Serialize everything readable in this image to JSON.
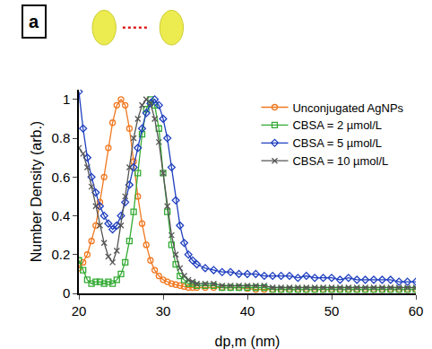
{
  "chart_data": {
    "type": "line",
    "annotations": [
      "a"
    ],
    "x_label": "dp,m (nm)",
    "y_label": "Number Density (arb.)",
    "x": [
      20,
      20.5,
      21,
      21.5,
      22,
      22.5,
      23,
      23.5,
      24,
      24.5,
      25,
      25.5,
      26,
      26.5,
      27,
      27.5,
      28,
      28.5,
      29,
      29.5,
      30,
      30.5,
      31,
      31.5,
      32,
      32.5,
      33,
      33.5,
      34,
      35,
      36,
      37,
      38,
      39,
      40,
      41,
      42,
      43,
      44,
      45,
      46,
      47,
      48,
      49,
      50,
      51,
      52,
      53,
      54,
      55,
      56,
      57,
      58,
      59,
      60
    ],
    "xlim": [
      20,
      60
    ],
    "xticks": [
      20,
      30,
      40,
      50,
      60
    ],
    "ylim": [
      0,
      1.05
    ],
    "yticks": [
      0,
      0.2,
      0.4,
      0.6,
      0.8,
      1
    ],
    "grid": false,
    "legend": "upper right",
    "series": [
      {
        "name": "Unconjugated AgNPs",
        "color": "#f07820",
        "marker": "circle-open",
        "line_style": "solid",
        "values": [
          0.13,
          0.16,
          0.2,
          0.27,
          0.35,
          0.47,
          0.6,
          0.75,
          0.88,
          0.97,
          1.0,
          0.97,
          0.85,
          0.68,
          0.5,
          0.36,
          0.25,
          0.17,
          0.12,
          0.09,
          0.07,
          0.06,
          0.05,
          0.045,
          0.04,
          0.035,
          0.03,
          0.03,
          0.03,
          0.03,
          0.03,
          0.03,
          0.03,
          0.03,
          0.025,
          0.02,
          0.02,
          0.02,
          0.02,
          0.02,
          0.02,
          0.02,
          0.02,
          0.02,
          0.02,
          0.02,
          0.02,
          0.02,
          0.02,
          0.02,
          0.02,
          0.02,
          0.02,
          0.02,
          0.02
        ]
      },
      {
        "name": "CBSA = 2 µmol/L",
        "color": "#33aa33",
        "marker": "square-open",
        "line_style": "solid",
        "values": [
          0.17,
          0.12,
          0.07,
          0.05,
          0.06,
          0.06,
          0.05,
          0.06,
          0.05,
          0.07,
          0.1,
          0.16,
          0.27,
          0.42,
          0.62,
          0.82,
          0.95,
          1.0,
          0.97,
          0.85,
          0.62,
          0.42,
          0.25,
          0.15,
          0.09,
          0.07,
          0.05,
          0.05,
          0.04,
          0.04,
          0.04,
          0.03,
          0.03,
          0.03,
          0.03,
          0.03,
          0.03,
          0.02,
          0.02,
          0.02,
          0.02,
          0.02,
          0.02,
          0.02,
          0.02,
          0.02,
          0.02,
          0.02,
          0.02,
          0.02,
          0.02,
          0.02,
          0.02,
          0.02,
          0.02
        ]
      },
      {
        "name": "CBSA = 5 µmol/L",
        "color": "#1f3fbf",
        "marker": "diamond-open",
        "line_style": "solid",
        "values": [
          1.04,
          0.85,
          0.7,
          0.6,
          0.52,
          0.45,
          0.4,
          0.36,
          0.33,
          0.35,
          0.4,
          0.47,
          0.56,
          0.65,
          0.75,
          0.85,
          0.93,
          0.98,
          1.0,
          0.97,
          0.9,
          0.8,
          0.65,
          0.48,
          0.35,
          0.26,
          0.2,
          0.17,
          0.15,
          0.13,
          0.12,
          0.11,
          0.11,
          0.1,
          0.1,
          0.1,
          0.09,
          0.09,
          0.09,
          0.09,
          0.08,
          0.09,
          0.08,
          0.08,
          0.08,
          0.07,
          0.08,
          0.07,
          0.07,
          0.07,
          0.07,
          0.07,
          0.06,
          0.06,
          0.06
        ]
      },
      {
        "name": "CBSA = 10 µmol/L",
        "color": "#555555",
        "marker": "x-thin-open",
        "line_style": "solid",
        "values": [
          0.75,
          0.72,
          0.65,
          0.55,
          0.45,
          0.35,
          0.26,
          0.19,
          0.16,
          0.22,
          0.35,
          0.5,
          0.65,
          0.8,
          0.9,
          0.97,
          1.0,
          0.98,
          0.9,
          0.78,
          0.62,
          0.45,
          0.3,
          0.2,
          0.13,
          0.09,
          0.07,
          0.06,
          0.05,
          0.05,
          0.05,
          0.04,
          0.04,
          0.04,
          0.04,
          0.04,
          0.04,
          0.03,
          0.03,
          0.03,
          0.03,
          0.03,
          0.03,
          0.03,
          0.03,
          0.03,
          0.03,
          0.03,
          0.03,
          0.03,
          0.03,
          0.03,
          0.03,
          0.03,
          0.03
        ]
      }
    ]
  }
}
